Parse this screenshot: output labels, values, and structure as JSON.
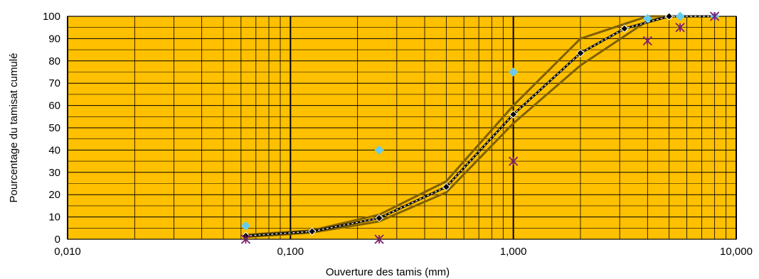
{
  "chart_data": {
    "type": "scatter",
    "title": "",
    "xlabel": "Ouverture des tamis (mm)",
    "ylabel": "Pourcentage du tamisat cumulé",
    "xscale": "log",
    "xlim": [
      0.01,
      10
    ],
    "ylim": [
      0,
      100
    ],
    "x_ticks": [
      0.01,
      0.1,
      1,
      10
    ],
    "x_tick_labels": [
      "0,010",
      "0,100",
      "1,000",
      "10,000"
    ],
    "y_ticks": [
      0,
      10,
      20,
      30,
      40,
      50,
      60,
      70,
      80,
      90,
      100
    ],
    "y_tick_labels": [
      "0",
      "10",
      "20",
      "30",
      "40",
      "50",
      "60",
      "70",
      "80",
      "90",
      "100"
    ],
    "grid": true,
    "legend": "none",
    "colors": {
      "plot_background": "#FFC000",
      "grid_minor": "#000000",
      "envelope": "#7F6000",
      "curve": "#000000",
      "diamond_markers": "#66CCEE",
      "star_markers": "#7B1E6E"
    },
    "series": [
      {
        "style": "envelope-upper",
        "x": [
          0.063,
          0.125,
          0.25,
          0.5,
          1,
          2,
          4,
          5,
          8
        ],
        "y": [
          2,
          4,
          11,
          26,
          60,
          90,
          100,
          100,
          100
        ]
      },
      {
        "style": "envelope-lower",
        "x": [
          0.063,
          0.125,
          0.25,
          0.5,
          1,
          2,
          4,
          5,
          8
        ],
        "y": [
          1,
          3,
          8,
          21,
          52,
          78,
          98,
          100,
          100
        ]
      },
      {
        "style": "curve-black-diamonds",
        "x": [
          0.063,
          0.125,
          0.25,
          0.5,
          1,
          2,
          3.15,
          5,
          8
        ],
        "y": [
          1.5,
          3.5,
          9.5,
          23.5,
          56,
          83.5,
          94.5,
          100,
          100
        ]
      },
      {
        "style": "cyan-diamonds",
        "x": [
          0.063,
          0.25,
          1,
          4,
          5.6,
          8
        ],
        "y": [
          6,
          40,
          75,
          99,
          100,
          100
        ]
      },
      {
        "style": "purple-stars",
        "x": [
          0.063,
          0.25,
          1,
          4,
          5.6,
          8
        ],
        "y": [
          0,
          0,
          35,
          89,
          95,
          100
        ]
      }
    ]
  }
}
